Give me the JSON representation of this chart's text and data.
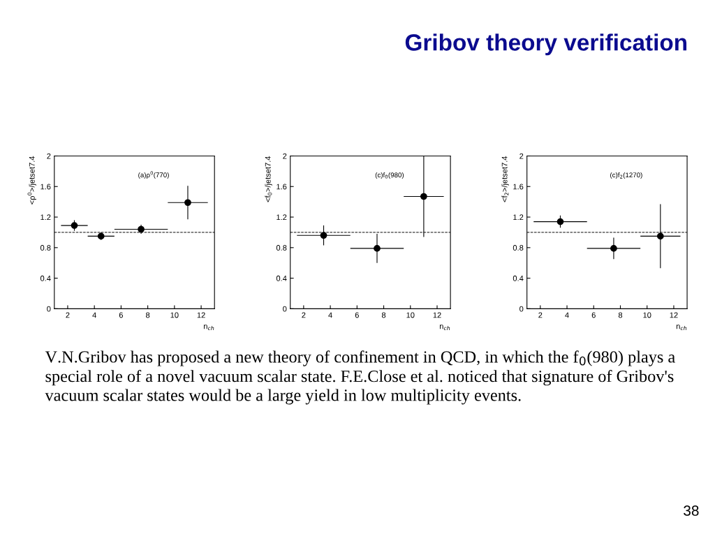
{
  "chart_data": [
    {
      "type": "scatter",
      "xlabel": "n$_{ch}$",
      "ylabel": "<ρ$^{0}$>/jetset7.4",
      "annotations": [
        "(a)ρ$^{0}$(770)",
        "V.N.Gribov has proposed a new theory of confinement in QCD, in which the f$_{0}$(980) plays a special role of a novel vacuum scalar state. F.E.Close et al. noticed that signature of Gribov's vacuum scalar states would be a large yield in low multiplicity events.",
        "38"
      ],
      "series": [
        {
          "color": "#000000",
          "x": [
            2.5,
            4.5,
            7.5,
            11
          ],
          "values": [
            1.09,
            0.95,
            1.04,
            1.39
          ],
          "errors": [
            0.07,
            0.05,
            0.06,
            0.22
          ],
          "xerrors": [
            1,
            1,
            2,
            1.5
          ]
        }
      ],
      "xlim": [
        1,
        13
      ],
      "xticks": [
        2,
        4,
        6,
        8,
        10,
        12
      ],
      "ylim": [
        0,
        2
      ],
      "yticks": [
        0,
        0.4,
        0.8,
        1.2,
        1.6,
        2
      ],
      "marker": "circle",
      "ref_lines": [
        {
          "axis": "y",
          "value": 1,
          "line_style": "dashed",
          "color": "#000000"
        }
      ],
      "grid": false,
      "legend": false
    },
    {
      "type": "scatter",
      "xlabel": "n$_{ch}$",
      "ylabel": "<f$_{0}$>/jetset7.4",
      "annotations": [
        "(c)f$_{0}$(980)"
      ],
      "series": [
        {
          "color": "#000000",
          "x": [
            3.5,
            7.5,
            11
          ],
          "values": [
            0.96,
            0.79,
            1.47
          ],
          "errors": [
            0.13,
            0.19,
            0.53
          ],
          "xerrors": [
            2,
            2,
            1.5
          ]
        }
      ],
      "xlim": [
        1,
        13
      ],
      "xticks": [
        2,
        4,
        6,
        8,
        10,
        12
      ],
      "ylim": [
        0,
        2
      ],
      "yticks": [
        0,
        0.4,
        0.8,
        1.2,
        1.6,
        2
      ],
      "marker": "circle",
      "ref_lines": [
        {
          "axis": "y",
          "value": 1,
          "line_style": "dashed",
          "color": "#000000"
        }
      ],
      "grid": false,
      "legend": false
    },
    {
      "type": "scatter",
      "title": "Gribov theory verification",
      "xlabel": "n$_{ch}$",
      "ylabel": "<f$_{2}$>/jetset7.4",
      "annotations": [
        "(c)f$_{2}$(1270)"
      ],
      "series": [
        {
          "color": "#000000",
          "x": [
            3.5,
            7.5,
            11
          ],
          "values": [
            1.14,
            0.79,
            0.95
          ],
          "errors": [
            0.08,
            0.14,
            0.42
          ],
          "xerrors": [
            2,
            2,
            1.5
          ]
        }
      ],
      "xlim": [
        1,
        13
      ],
      "xticks": [
        2,
        4,
        6,
        8,
        10,
        12
      ],
      "ylim": [
        0,
        2
      ],
      "yticks": [
        0,
        0.4,
        0.8,
        1.2,
        1.6,
        2
      ],
      "marker": "circle",
      "ref_lines": [
        {
          "axis": "y",
          "value": 1,
          "line_style": "dashed",
          "color": "#000000"
        }
      ],
      "grid": false,
      "legend": false
    }
  ]
}
